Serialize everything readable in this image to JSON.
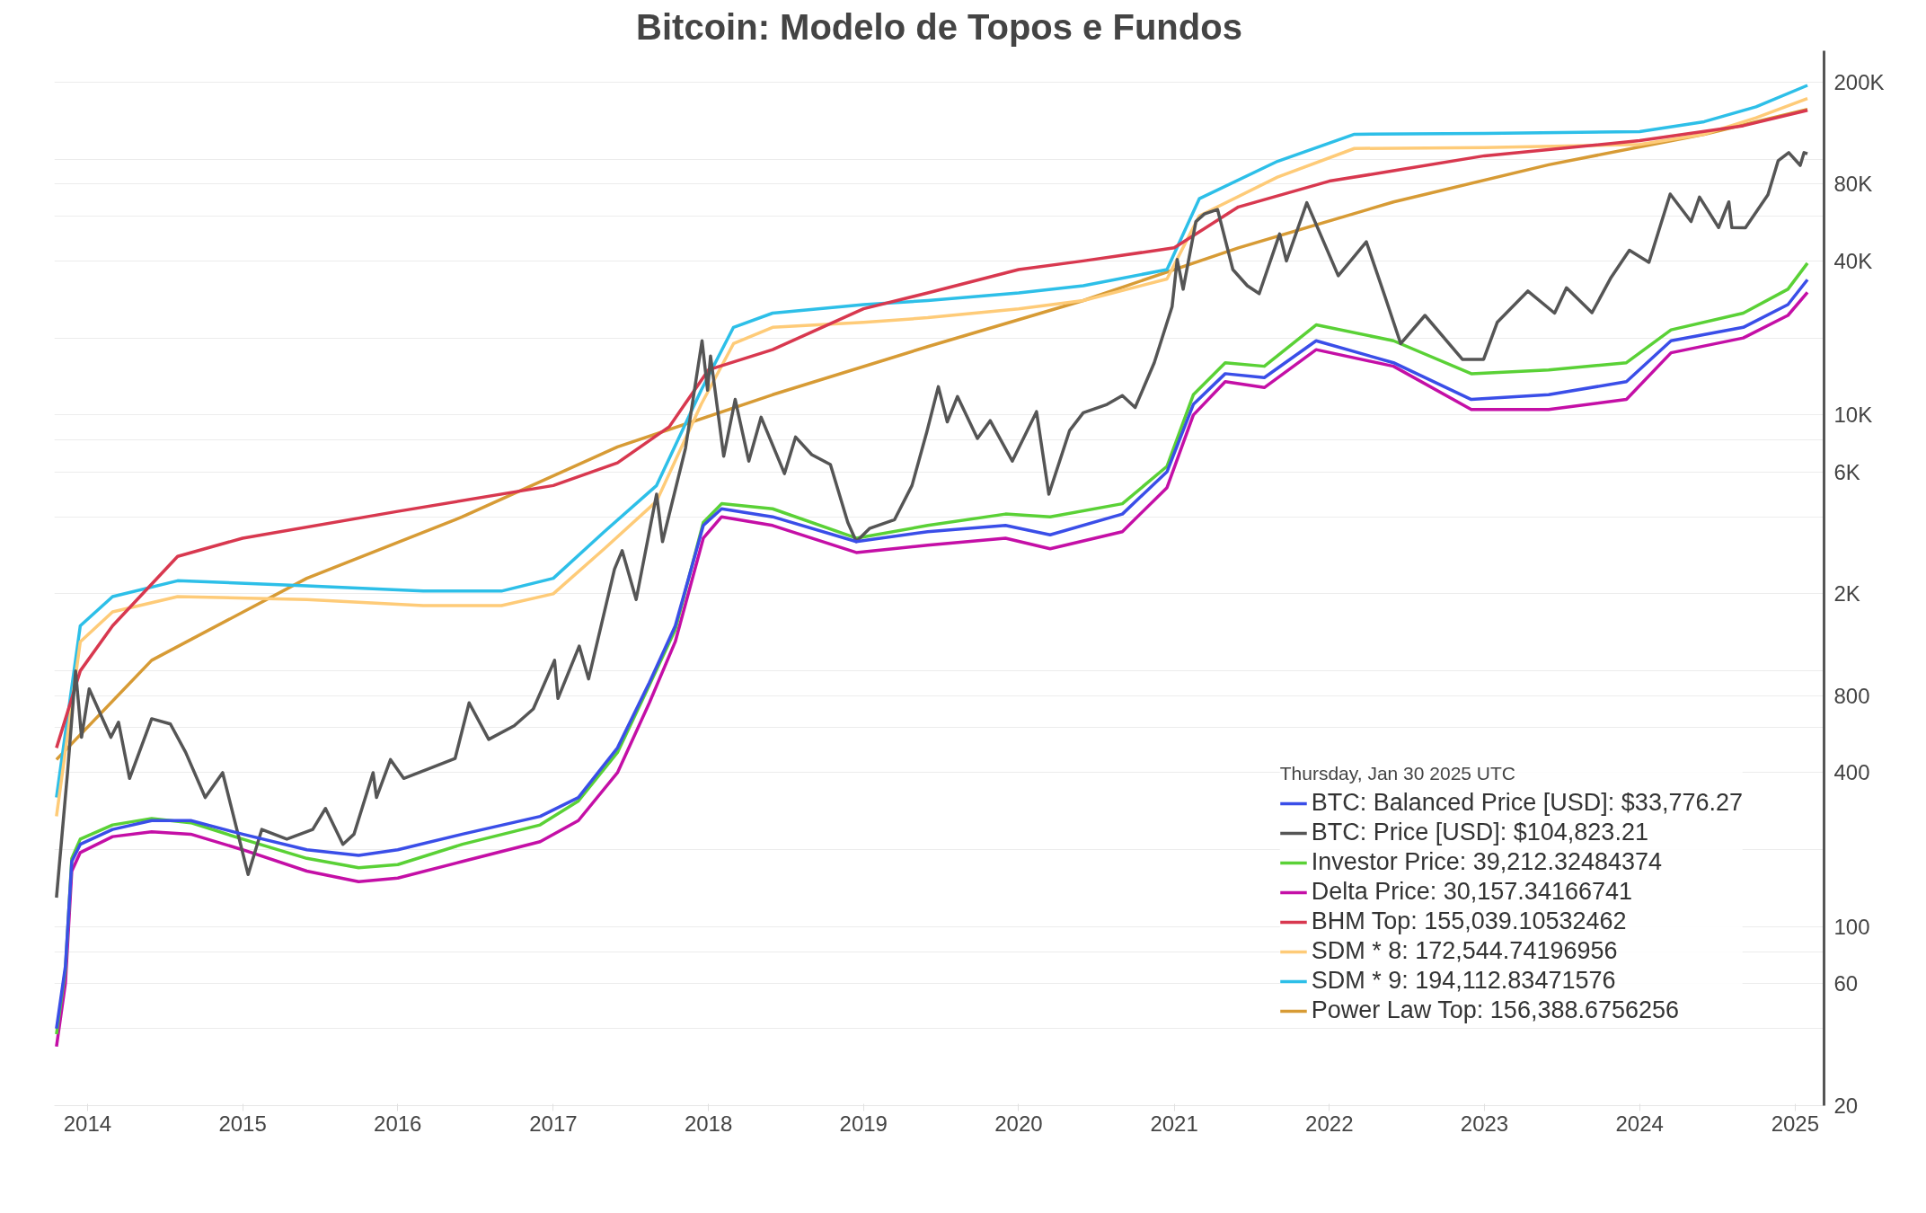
{
  "chart_data": {
    "type": "line",
    "title": "Bitcoin: Modelo de Topos e Fundos",
    "legend_title": "Thursday, Jan 30 2025 UTC",
    "legend": "bottom right",
    "grid": "y",
    "log": "y",
    "line_style": "solid",
    "xlim": [
      "2013-10-15",
      "2025-03-10"
    ],
    "ylim": [
      20,
      265000
    ],
    "xticks": [
      {
        "value": "2014-01-01",
        "label": "2014"
      },
      {
        "value": "2015-01-01",
        "label": "2015"
      },
      {
        "value": "2016-01-01",
        "label": "2016"
      },
      {
        "value": "2017-01-01",
        "label": "2017"
      },
      {
        "value": "2018-01-01",
        "label": "2018"
      },
      {
        "value": "2019-01-01",
        "label": "2019"
      },
      {
        "value": "2020-01-01",
        "label": "2020"
      },
      {
        "value": "2021-01-01",
        "label": "2021"
      },
      {
        "value": "2022-01-01",
        "label": "2022"
      },
      {
        "value": "2023-01-01",
        "label": "2023"
      },
      {
        "value": "2024-01-01",
        "label": "2024"
      },
      {
        "value": "2025-01-01",
        "label": "2025"
      }
    ],
    "yticks": [
      20,
      {
        "value": 40,
        "label": null
      },
      60,
      {
        "value": 80,
        "label": null
      },
      100,
      {
        "value": 200,
        "label": null
      },
      400,
      {
        "value": 600,
        "label": null
      },
      800,
      {
        "value": 1000,
        "label": null
      },
      {
        "value": 2000,
        "label": "2K"
      },
      {
        "value": 4000,
        "label": null
      },
      {
        "value": 6000,
        "label": "6K"
      },
      {
        "value": 8000,
        "label": null
      },
      {
        "value": 10000,
        "label": "10K"
      },
      {
        "value": 20000,
        "label": null
      },
      {
        "value": 40000,
        "label": "40K"
      },
      {
        "value": 60000,
        "label": null
      },
      {
        "value": 80000,
        "label": "80K"
      },
      {
        "value": 100000,
        "label": null
      },
      {
        "value": 200000,
        "label": "200K"
      }
    ],
    "series": [
      {
        "name": "BTC: Balanced Price [USD]: $33,776.27",
        "color": "#3a4ee8",
        "x": [
          "2013-10-20",
          "2013-11-10",
          "2013-11-25",
          "2013-12-15",
          "2014-03-01",
          "2014-06-01",
          "2014-09-01",
          "2015-01-01",
          "2015-06-01",
          "2015-10-01",
          "2016-01-01",
          "2016-06-01",
          "2016-12-01",
          "2017-03-01",
          "2017-06-01",
          "2017-08-15",
          "2017-10-15",
          "2017-12-20",
          "2018-02-01",
          "2018-06-01",
          "2018-12-15",
          "2019-06-01",
          "2019-12-01",
          "2020-03-15",
          "2020-09-01",
          "2020-12-15",
          "2021-02-15",
          "2021-05-01",
          "2021-08-01",
          "2021-12-01",
          "2022-06-01",
          "2022-12-01",
          "2023-06-01",
          "2023-12-01",
          "2024-03-15",
          "2024-09-01",
          "2024-12-15",
          "2025-01-30"
        ],
        "values": [
          40,
          70,
          180,
          210,
          240,
          260,
          260,
          230,
          200,
          190,
          200,
          230,
          270,
          320,
          500,
          900,
          1500,
          3700,
          4300,
          4000,
          3200,
          3500,
          3700,
          3400,
          4100,
          6000,
          11000,
          14500,
          14000,
          19500,
          16000,
          11500,
          12000,
          13500,
          19500,
          22000,
          27000,
          33776.27
        ]
      },
      {
        "name": "BTC: Price [USD]: $104,823.21",
        "color": "#555555",
        "x": [
          "2013-10-20",
          "2013-11-15",
          "2013-12-04",
          "2013-12-18",
          "2014-01-05",
          "2014-02-25",
          "2014-03-15",
          "2014-04-10",
          "2014-06-01",
          "2014-07-15",
          "2014-08-20",
          "2014-10-05",
          "2014-11-15",
          "2015-01-14",
          "2015-02-15",
          "2015-04-15",
          "2015-06-15",
          "2015-07-15",
          "2015-08-25",
          "2015-09-20",
          "2015-11-04",
          "2015-11-12",
          "2015-12-15",
          "2016-01-15",
          "2016-03-15",
          "2016-05-15",
          "2016-06-17",
          "2016-08-02",
          "2016-10-01",
          "2016-11-15",
          "2017-01-04",
          "2017-01-12",
          "2017-03-03",
          "2017-03-25",
          "2017-05-25",
          "2017-06-12",
          "2017-07-15",
          "2017-09-01",
          "2017-09-15",
          "2017-11-08",
          "2017-12-17",
          "2017-12-30",
          "2018-01-06",
          "2018-02-06",
          "2018-03-05",
          "2018-04-06",
          "2018-05-05",
          "2018-06-29",
          "2018-07-25",
          "2018-09-01",
          "2018-10-15",
          "2018-11-25",
          "2018-12-15",
          "2019-01-15",
          "2019-03-15",
          "2019-04-25",
          "2019-05-30",
          "2019-06-26",
          "2019-07-17",
          "2019-08-10",
          "2019-09-26",
          "2019-10-26",
          "2019-12-17",
          "2020-02-12",
          "2020-03-12",
          "2020-04-30",
          "2020-06-01",
          "2020-07-27",
          "2020-09-01",
          "2020-10-01",
          "2020-11-15",
          "2020-12-27",
          "2021-01-08",
          "2021-01-22",
          "2021-02-21",
          "2021-03-13",
          "2021-04-13",
          "2021-05-19",
          "2021-06-22",
          "2021-07-20",
          "2021-09-06",
          "2021-09-22",
          "2021-11-09",
          "2022-01-22",
          "2022-03-29",
          "2022-05-12",
          "2022-06-18",
          "2022-08-14",
          "2022-11-10",
          "2022-12-30",
          "2023-01-31",
          "2023-04-13",
          "2023-06-15",
          "2023-07-13",
          "2023-09-11",
          "2023-10-26",
          "2023-12-08",
          "2024-01-23",
          "2024-03-13",
          "2024-05-01",
          "2024-05-21",
          "2024-07-05",
          "2024-07-29",
          "2024-08-05",
          "2024-09-06",
          "2024-10-29",
          "2024-11-22",
          "2024-12-17",
          "2025-01-13",
          "2025-01-22",
          "2025-01-30"
        ],
        "values": [
          130,
          400,
          1000,
          550,
          850,
          550,
          630,
          380,
          650,
          620,
          480,
          320,
          400,
          160,
          240,
          220,
          240,
          290,
          210,
          230,
          400,
          320,
          450,
          380,
          415,
          455,
          750,
          540,
          610,
          710,
          1100,
          780,
          1250,
          930,
          2500,
          2950,
          1900,
          4900,
          3200,
          7400,
          19500,
          12500,
          17000,
          6900,
          11500,
          6600,
          9800,
          5900,
          8200,
          7000,
          6400,
          3800,
          3200,
          3600,
          3900,
          5300,
          8600,
          12900,
          9400,
          11800,
          8100,
          9500,
          6600,
          10300,
          4900,
          8700,
          10200,
          11000,
          11900,
          10700,
          16000,
          26500,
          40500,
          31000,
          57000,
          61000,
          63500,
          37000,
          32000,
          29800,
          51000,
          40000,
          67500,
          35000,
          47500,
          29000,
          19000,
          24500,
          16500,
          16500,
          23000,
          30500,
          25000,
          31400,
          25100,
          34500,
          44000,
          39500,
          73000,
          57000,
          71000,
          54000,
          68000,
          54000,
          53900,
          72500,
          98500,
          106000,
          94500,
          106000,
          104823.21
        ]
      },
      {
        "name": "Investor Price: 39,212.32484374",
        "color": "#5ad136",
        "x": [
          "2013-10-20",
          "2013-11-10",
          "2013-11-25",
          "2013-12-15",
          "2014-03-01",
          "2014-06-01",
          "2014-09-01",
          "2015-01-01",
          "2015-06-01",
          "2015-10-01",
          "2016-01-01",
          "2016-06-01",
          "2016-12-01",
          "2017-03-01",
          "2017-06-01",
          "2017-08-15",
          "2017-10-15",
          "2017-12-20",
          "2018-02-01",
          "2018-06-01",
          "2018-12-15",
          "2019-06-01",
          "2019-12-01",
          "2020-03-15",
          "2020-09-01",
          "2020-12-15",
          "2021-02-15",
          "2021-05-01",
          "2021-08-01",
          "2021-12-01",
          "2022-06-01",
          "2022-12-01",
          "2023-06-01",
          "2023-12-01",
          "2024-03-15",
          "2024-09-01",
          "2024-12-15",
          "2025-01-30"
        ],
        "values": [
          38,
          68,
          185,
          220,
          250,
          265,
          255,
          220,
          185,
          170,
          175,
          210,
          250,
          310,
          480,
          880,
          1450,
          3800,
          4500,
          4300,
          3300,
          3700,
          4100,
          4000,
          4500,
          6300,
          12000,
          16000,
          15500,
          22500,
          19500,
          14500,
          15000,
          16000,
          21500,
          25000,
          31000,
          39212.32484374
        ]
      },
      {
        "name": "Delta Price: 30,157.34166741",
        "color": "#c40fa6",
        "x": [
          "2013-10-20",
          "2013-11-10",
          "2013-11-25",
          "2013-12-15",
          "2014-03-01",
          "2014-06-01",
          "2014-09-01",
          "2015-01-01",
          "2015-06-01",
          "2015-10-01",
          "2016-01-01",
          "2016-06-01",
          "2016-12-01",
          "2017-03-01",
          "2017-06-01",
          "2017-08-15",
          "2017-10-15",
          "2017-12-20",
          "2018-02-01",
          "2018-06-01",
          "2018-12-15",
          "2019-06-01",
          "2019-12-01",
          "2020-03-15",
          "2020-09-01",
          "2020-12-15",
          "2021-02-15",
          "2021-05-01",
          "2021-08-01",
          "2021-12-01",
          "2022-06-01",
          "2022-12-01",
          "2023-06-01",
          "2023-12-01",
          "2024-03-15",
          "2024-09-01",
          "2024-12-15",
          "2025-01-30"
        ],
        "values": [
          34,
          60,
          165,
          195,
          225,
          235,
          230,
          200,
          165,
          150,
          155,
          180,
          215,
          260,
          400,
          750,
          1300,
          3300,
          4000,
          3700,
          2900,
          3100,
          3300,
          3000,
          3500,
          5200,
          10000,
          13500,
          12800,
          18000,
          15500,
          10500,
          10500,
          11500,
          17500,
          20000,
          24500,
          30157.34166741
        ]
      },
      {
        "name": "BHM Top: 155,039.10532462",
        "color": "#d8384f",
        "x": [
          "2013-10-20",
          "2013-12-15",
          "2014-03-01",
          "2014-08-01",
          "2015-01-01",
          "2016-01-01",
          "2017-01-01",
          "2017-06-01",
          "2017-10-01",
          "2018-01-01",
          "2018-06-01",
          "2019-01-01",
          "2019-06-01",
          "2020-01-01",
          "2020-06-01",
          "2021-01-01",
          "2021-06-01",
          "2022-01-01",
          "2022-06-01",
          "2023-01-01",
          "2024-01-01",
          "2024-09-01",
          "2025-01-30"
        ],
        "values": [
          500,
          1000,
          1500,
          2800,
          3300,
          4200,
          5300,
          6500,
          9000,
          15000,
          18000,
          26000,
          30000,
          37000,
          40000,
          45000,
          65000,
          82000,
          90000,
          103000,
          118000,
          135000,
          155039.10532462
        ]
      },
      {
        "name": "SDM * 8: 172,544.74196956",
        "color": "#fecb78",
        "x": [
          "2013-10-20",
          "2013-12-15",
          "2014-03-01",
          "2014-08-01",
          "2015-06-01",
          "2016-03-01",
          "2016-09-01",
          "2017-01-01",
          "2017-05-01",
          "2017-09-01",
          "2017-12-15",
          "2018-03-01",
          "2018-06-01",
          "2019-01-01",
          "2019-06-01",
          "2020-01-01",
          "2020-06-01",
          "2020-12-15",
          "2021-03-01",
          "2021-09-01",
          "2022-03-01",
          "2023-01-01",
          "2024-01-01",
          "2024-06-01",
          "2024-10-01",
          "2025-01-30"
        ],
        "values": [
          270,
          1300,
          1700,
          1950,
          1900,
          1800,
          1800,
          2000,
          3000,
          4600,
          11000,
          19000,
          22000,
          23000,
          24000,
          26000,
          28000,
          34000,
          60000,
          85000,
          110000,
          111000,
          114000,
          125000,
          145000,
          172544.74196956
        ]
      },
      {
        "name": "SDM * 9: 194,112.83471576",
        "color": "#2dbfe8",
        "x": [
          "2013-10-20",
          "2013-12-15",
          "2014-03-01",
          "2014-08-01",
          "2015-06-01",
          "2016-03-01",
          "2016-09-01",
          "2017-01-01",
          "2017-05-01",
          "2017-09-01",
          "2017-12-15",
          "2018-03-01",
          "2018-06-01",
          "2019-01-01",
          "2019-06-01",
          "2020-01-01",
          "2020-06-01",
          "2020-12-15",
          "2021-03-01",
          "2021-09-01",
          "2022-03-01",
          "2023-01-01",
          "2024-01-01",
          "2024-06-01",
          "2024-10-01",
          "2025-01-30"
        ],
        "values": [
          320,
          1500,
          1950,
          2250,
          2150,
          2050,
          2050,
          2300,
          3500,
          5300,
          12500,
          22000,
          25000,
          27000,
          28000,
          30000,
          32000,
          37000,
          70000,
          98000,
          125000,
          126000,
          128000,
          140000,
          160000,
          194112.83471576
        ]
      },
      {
        "name": "Power Law Top: 156,388.6756256",
        "color": "#d79b35",
        "x": [
          "2013-10-20",
          "2014-06-01",
          "2015-06-01",
          "2016-06-01",
          "2017-06-01",
          "2018-06-01",
          "2019-06-01",
          "2020-06-01",
          "2021-06-01",
          "2022-06-01",
          "2023-06-01",
          "2024-06-01",
          "2025-01-30"
        ],
        "values": [
          450,
          1100,
          2300,
          4000,
          7500,
          12000,
          18500,
          28000,
          45000,
          68000,
          95000,
          125000,
          156388.6756256
        ]
      }
    ]
  }
}
